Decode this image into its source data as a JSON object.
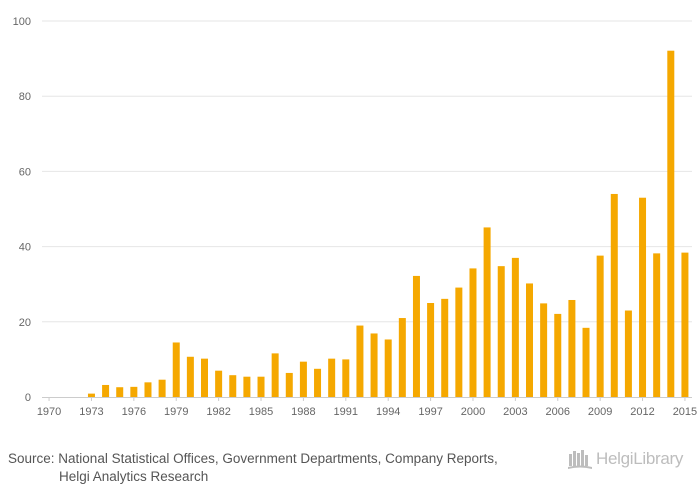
{
  "chart_data": {
    "type": "bar",
    "title": "",
    "xlabel": "",
    "ylabel": "",
    "ylim": [
      0,
      100
    ],
    "yticks": [
      0,
      20,
      40,
      60,
      80,
      100
    ],
    "xtick_labels": [
      "1970",
      "1973",
      "1976",
      "1979",
      "1982",
      "1985",
      "1988",
      "1991",
      "1994",
      "1997",
      "2000",
      "2003",
      "2006",
      "2009",
      "2012",
      "2015"
    ],
    "categories": [
      1970,
      1971,
      1972,
      1973,
      1974,
      1975,
      1976,
      1977,
      1978,
      1979,
      1980,
      1981,
      1982,
      1983,
      1984,
      1985,
      1986,
      1987,
      1988,
      1989,
      1990,
      1991,
      1992,
      1993,
      1994,
      1995,
      1996,
      1997,
      1998,
      1999,
      2000,
      2001,
      2002,
      2003,
      2004,
      2005,
      2006,
      2007,
      2008,
      2009,
      2010,
      2011,
      2012,
      2013,
      2014,
      2015
    ],
    "values": [
      0,
      0,
      0,
      0.9,
      3.2,
      2.6,
      2.7,
      3.9,
      4.6,
      14.5,
      10.7,
      10.2,
      7.0,
      5.8,
      5.4,
      5.4,
      11.6,
      6.4,
      9.4,
      7.5,
      10.2,
      10.0,
      19.0,
      16.9,
      15.3,
      21.0,
      32.2,
      25.0,
      26.1,
      29.1,
      34.2,
      45.1,
      34.8,
      37.0,
      30.2,
      24.9,
      22.1,
      25.8,
      18.4,
      37.6,
      54.0,
      23.0,
      53.0,
      38.2,
      92.1,
      38.4
    ],
    "bar_color": "#f5a800",
    "grid": true,
    "legend": "none"
  },
  "source": {
    "prefix": "Source:",
    "line1": "National Statistical Offices, Government Departments, Company Reports,",
    "line2": "Helgi Analytics Research"
  },
  "brand": {
    "name": "HelgiLibrary",
    "icon": "library-books-icon",
    "color": "#bdbdbd"
  }
}
